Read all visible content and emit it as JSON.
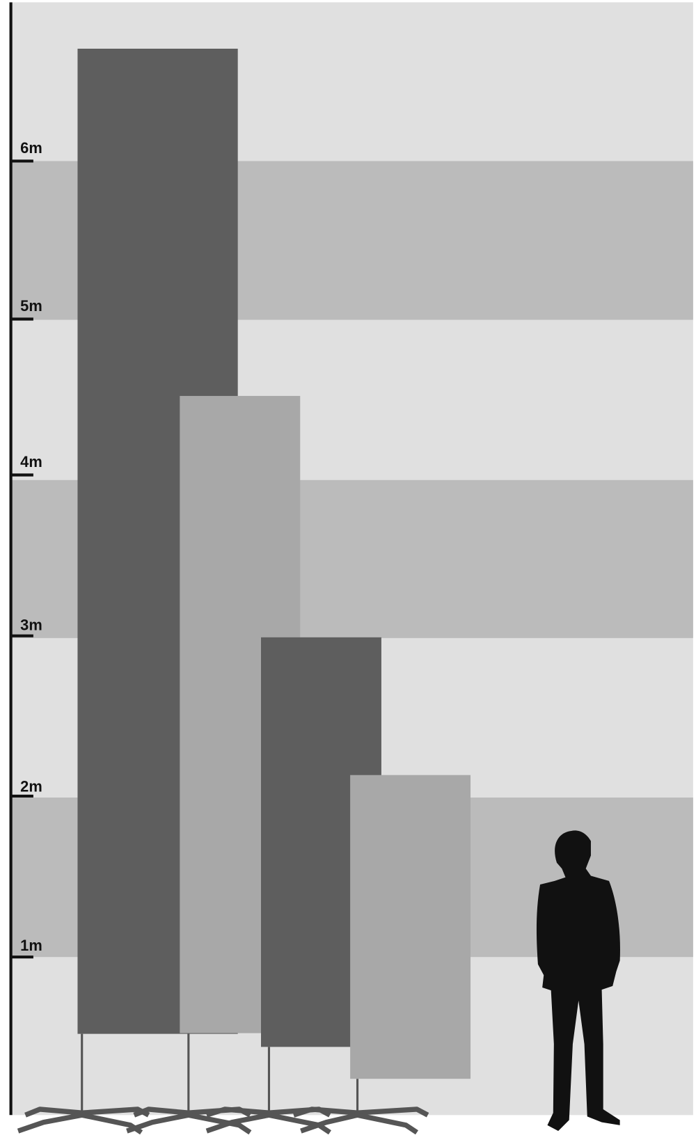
{
  "scale": {
    "labels": [
      "6m",
      "5m",
      "4m",
      "3m",
      "2m",
      "1m"
    ]
  }
}
